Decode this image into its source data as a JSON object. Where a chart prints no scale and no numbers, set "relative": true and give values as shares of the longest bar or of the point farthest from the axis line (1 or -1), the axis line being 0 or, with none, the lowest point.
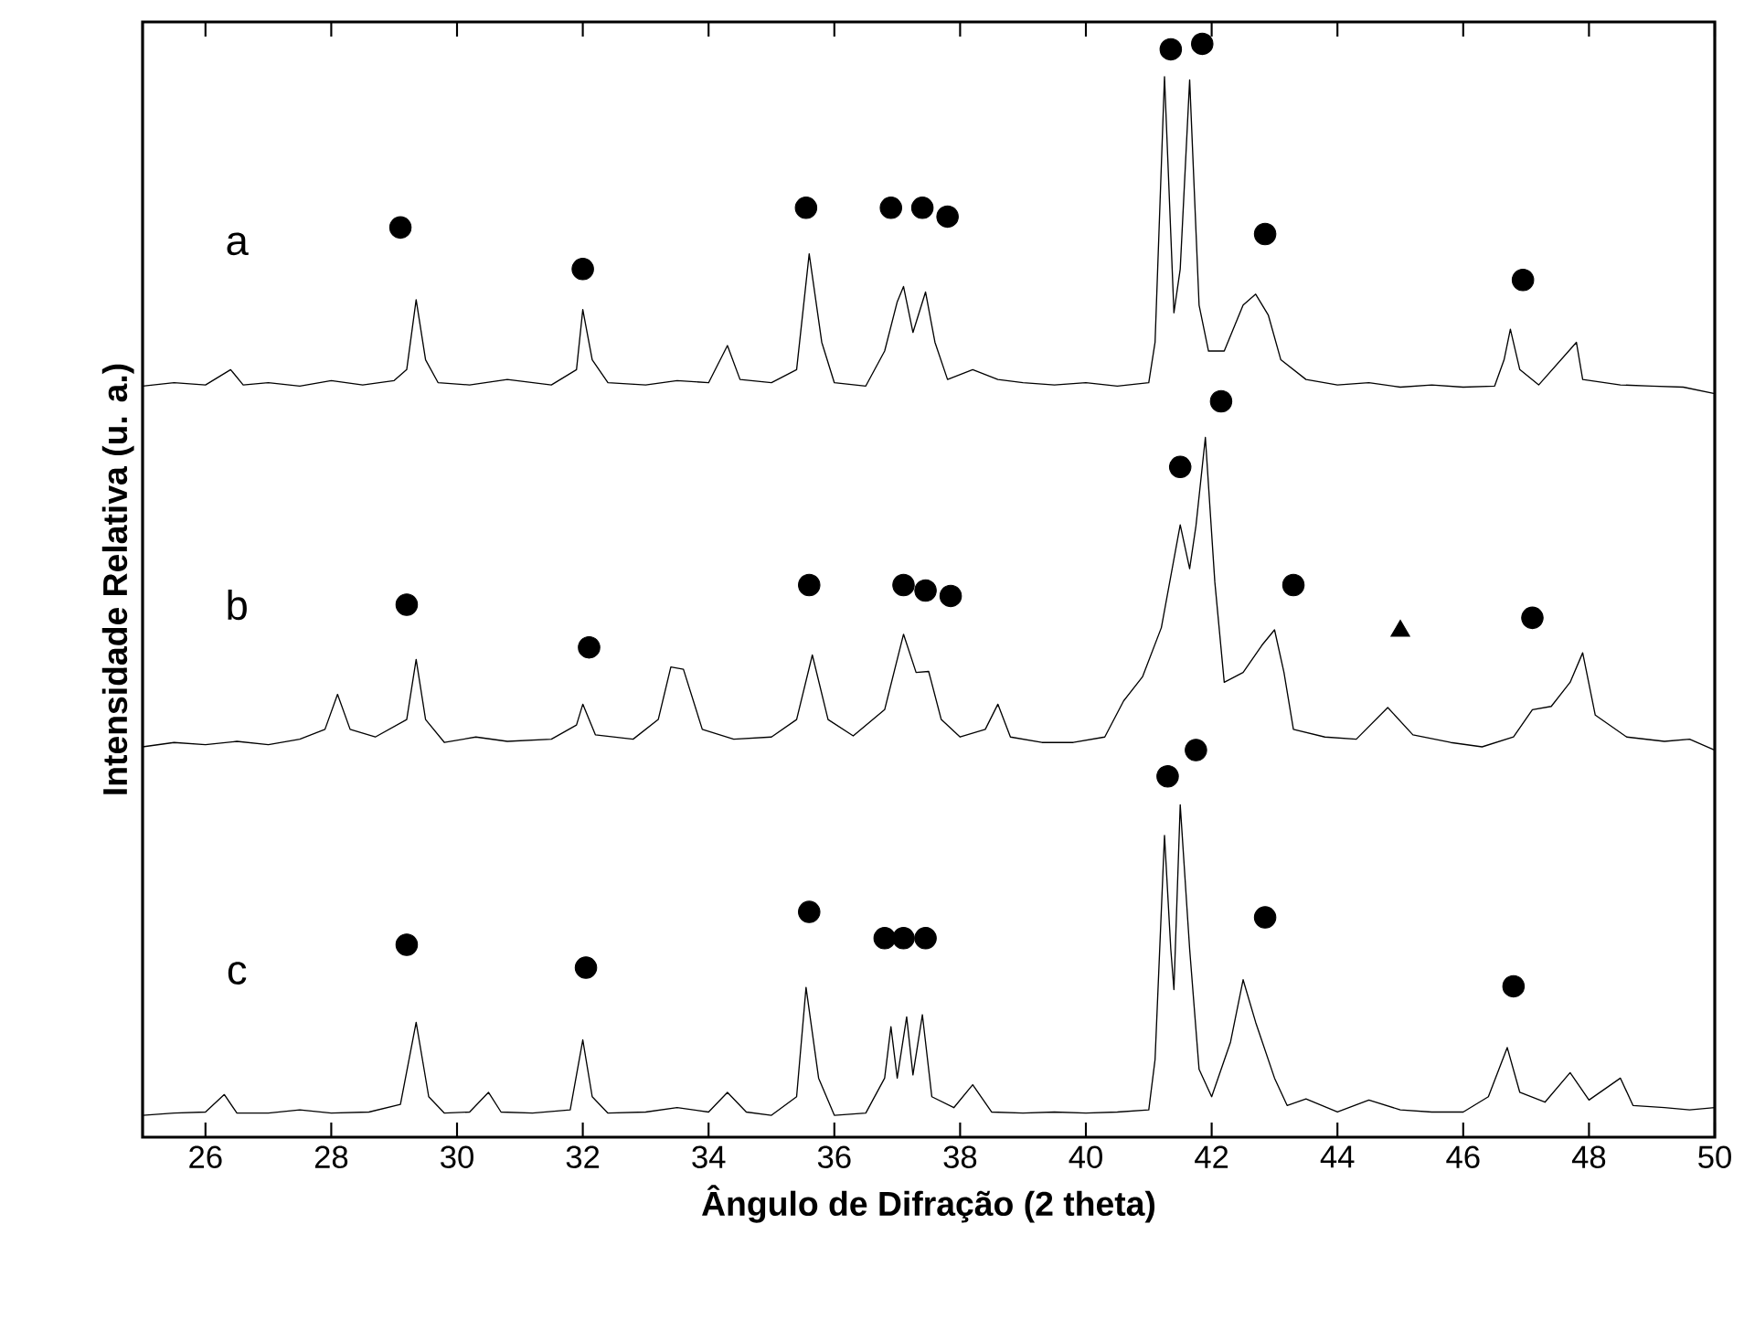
{
  "chart_data": {
    "type": "line",
    "xlabel": "Ângulo de Difração (2 theta)",
    "ylabel": "Intensidade Relativa (u. a.)",
    "relative": true,
    "tick_labels": "x",
    "xlim": [
      25,
      50
    ],
    "xticks": [
      26,
      28,
      30,
      32,
      34,
      36,
      38,
      40,
      42,
      44,
      46,
      48,
      50
    ],
    "line_style": "solid",
    "series": [
      {
        "name": "a",
        "color": "#000000",
        "x": [
          25.0,
          25.5,
          26.0,
          26.4,
          26.6,
          27.0,
          27.5,
          28.0,
          28.5,
          29.0,
          29.2,
          29.35,
          29.5,
          29.7,
          30.2,
          30.8,
          31.5,
          31.9,
          32.0,
          32.15,
          32.4,
          33.0,
          33.5,
          34.0,
          34.3,
          34.5,
          35.0,
          35.4,
          35.6,
          35.8,
          36.0,
          36.5,
          36.8,
          37.0,
          37.1,
          37.25,
          37.45,
          37.6,
          37.8,
          38.2,
          38.6,
          39.0,
          39.5,
          40.0,
          40.5,
          41.0,
          41.1,
          41.25,
          41.4,
          41.5,
          41.65,
          41.8,
          41.95,
          42.2,
          42.5,
          42.7,
          42.9,
          43.1,
          43.5,
          44.0,
          44.5,
          45.0,
          45.5,
          46.0,
          46.5,
          46.65,
          46.75,
          46.9,
          47.2,
          47.8,
          47.9,
          48.5,
          49.0,
          49.5,
          50.0
        ],
        "values": [
          0.687,
          0.69,
          0.688,
          0.702,
          0.688,
          0.69,
          0.687,
          0.692,
          0.688,
          0.692,
          0.702,
          0.766,
          0.711,
          0.69,
          0.688,
          0.693,
          0.688,
          0.702,
          0.757,
          0.711,
          0.69,
          0.688,
          0.692,
          0.69,
          0.724,
          0.693,
          0.69,
          0.702,
          0.808,
          0.727,
          0.69,
          0.687,
          0.719,
          0.764,
          0.778,
          0.736,
          0.773,
          0.727,
          0.693,
          0.702,
          0.693,
          0.69,
          0.688,
          0.69,
          0.687,
          0.69,
          0.727,
          0.97,
          0.754,
          0.794,
          0.967,
          0.761,
          0.719,
          0.719,
          0.761,
          0.771,
          0.752,
          0.711,
          0.693,
          0.688,
          0.69,
          0.686,
          0.688,
          0.686,
          0.687,
          0.711,
          0.739,
          0.702,
          0.688,
          0.727,
          0.693,
          0.688,
          0.687,
          0.686,
          0.68
        ]
      },
      {
        "name": "b",
        "color": "#000000",
        "x": [
          25.0,
          25.5,
          26.0,
          26.5,
          27.0,
          27.5,
          27.9,
          28.1,
          28.3,
          28.7,
          29.2,
          29.35,
          29.5,
          29.8,
          30.3,
          30.8,
          31.5,
          31.9,
          32.0,
          32.2,
          32.8,
          33.2,
          33.4,
          33.6,
          33.9,
          34.4,
          35.0,
          35.4,
          35.65,
          35.9,
          36.3,
          36.8,
          37.1,
          37.3,
          37.5,
          37.7,
          38.0,
          38.4,
          38.6,
          38.8,
          39.3,
          39.8,
          40.3,
          40.6,
          40.9,
          41.2,
          41.5,
          41.65,
          41.75,
          41.9,
          42.05,
          42.2,
          42.5,
          42.8,
          43.0,
          43.15,
          43.3,
          43.8,
          44.3,
          44.8,
          45.2,
          45.8,
          46.3,
          46.8,
          47.1,
          47.4,
          47.7,
          47.9,
          48.1,
          48.6,
          49.2,
          49.6,
          50.0
        ],
        "values": [
          0.357,
          0.361,
          0.359,
          0.362,
          0.359,
          0.364,
          0.373,
          0.405,
          0.373,
          0.366,
          0.382,
          0.437,
          0.382,
          0.361,
          0.366,
          0.362,
          0.364,
          0.377,
          0.396,
          0.368,
          0.364,
          0.382,
          0.43,
          0.428,
          0.373,
          0.364,
          0.366,
          0.382,
          0.441,
          0.382,
          0.367,
          0.391,
          0.46,
          0.425,
          0.426,
          0.382,
          0.366,
          0.373,
          0.396,
          0.366,
          0.361,
          0.361,
          0.366,
          0.399,
          0.421,
          0.466,
          0.56,
          0.52,
          0.559,
          0.64,
          0.508,
          0.416,
          0.425,
          0.45,
          0.464,
          0.425,
          0.373,
          0.366,
          0.364,
          0.393,
          0.368,
          0.361,
          0.357,
          0.366,
          0.391,
          0.394,
          0.416,
          0.443,
          0.386,
          0.366,
          0.362,
          0.364,
          0.354
        ]
      },
      {
        "name": "c",
        "color": "#000000",
        "x": [
          25.0,
          25.5,
          26.0,
          26.3,
          26.5,
          27.0,
          27.5,
          28.0,
          28.6,
          29.1,
          29.35,
          29.55,
          29.8,
          30.2,
          30.5,
          30.7,
          31.2,
          31.8,
          32.0,
          32.15,
          32.4,
          33.0,
          33.5,
          34.0,
          34.3,
          34.6,
          35.0,
          35.4,
          35.55,
          35.75,
          36.0,
          36.5,
          36.8,
          36.9,
          37.0,
          37.15,
          37.25,
          37.4,
          37.55,
          37.9,
          38.2,
          38.5,
          39.0,
          39.5,
          40.0,
          40.5,
          41.0,
          41.1,
          41.25,
          41.35,
          41.4,
          41.5,
          41.65,
          41.8,
          42.0,
          42.3,
          42.5,
          42.7,
          43.0,
          43.2,
          43.5,
          44.0,
          44.5,
          45.0,
          45.5,
          46.0,
          46.4,
          46.7,
          46.9,
          47.3,
          47.7,
          48.0,
          48.5,
          48.7,
          49.2,
          49.6,
          50.0
        ],
        "values": [
          0.02,
          0.022,
          0.023,
          0.039,
          0.022,
          0.022,
          0.025,
          0.022,
          0.023,
          0.03,
          0.105,
          0.037,
          0.022,
          0.023,
          0.041,
          0.023,
          0.022,
          0.025,
          0.089,
          0.037,
          0.022,
          0.023,
          0.027,
          0.023,
          0.041,
          0.023,
          0.02,
          0.037,
          0.137,
          0.054,
          0.02,
          0.022,
          0.054,
          0.101,
          0.054,
          0.11,
          0.057,
          0.112,
          0.037,
          0.027,
          0.048,
          0.023,
          0.022,
          0.023,
          0.022,
          0.023,
          0.025,
          0.071,
          0.276,
          0.172,
          0.135,
          0.304,
          0.172,
          0.062,
          0.037,
          0.087,
          0.144,
          0.105,
          0.054,
          0.029,
          0.035,
          0.023,
          0.034,
          0.025,
          0.023,
          0.023,
          0.037,
          0.082,
          0.041,
          0.032,
          0.059,
          0.034,
          0.054,
          0.029,
          0.027,
          0.025,
          0.027
        ]
      },
      {
        "type": "scatter",
        "marker": "circle",
        "color": "#000000",
        "x": [
          29.1,
          32.0,
          35.55,
          36.9,
          37.4,
          37.8,
          41.35,
          41.85,
          42.85,
          46.95,
          29.2,
          32.1,
          35.6,
          37.1,
          37.45,
          37.85,
          41.5,
          42.15,
          43.3,
          47.1,
          29.2,
          32.05,
          35.6,
          36.8,
          37.1,
          37.45,
          41.3,
          41.75,
          42.85,
          46.8
        ],
        "values": [
          0.832,
          0.794,
          0.85,
          0.85,
          0.85,
          0.842,
          0.995,
          1.0,
          0.826,
          0.784,
          0.487,
          0.448,
          0.505,
          0.505,
          0.5,
          0.495,
          0.613,
          0.673,
          0.505,
          0.475,
          0.176,
          0.155,
          0.206,
          0.182,
          0.182,
          0.182,
          0.33,
          0.354,
          0.201,
          0.138
        ]
      },
      {
        "type": "scatter",
        "marker": "triangle",
        "color": "#000000",
        "x": [
          45.0
        ],
        "values": [
          0.463
        ]
      }
    ]
  }
}
